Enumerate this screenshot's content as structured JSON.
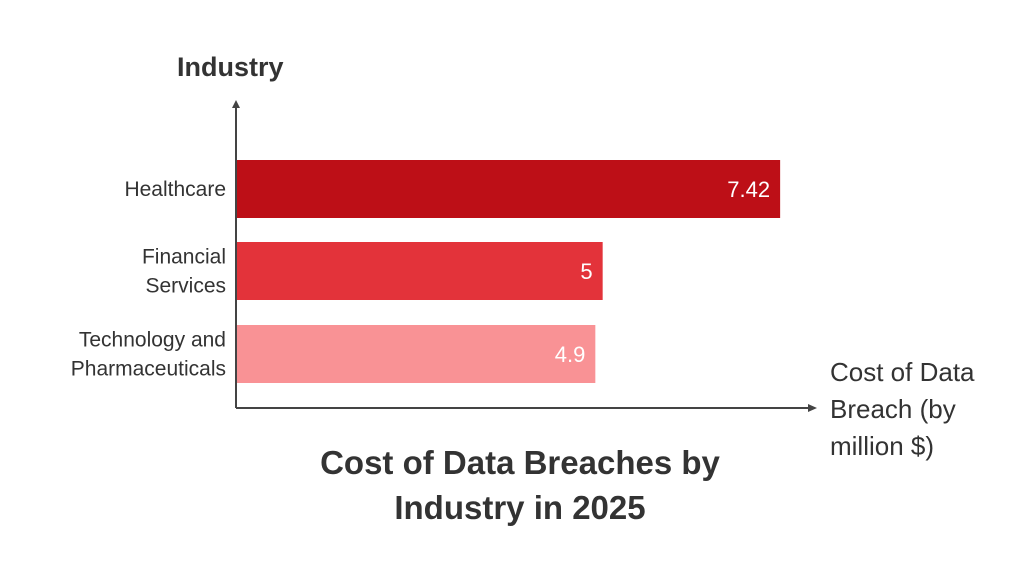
{
  "chart_data": {
    "type": "bar",
    "orientation": "horizontal",
    "title": "Cost of Data Breaches by Industry in 2025",
    "ylabel": "Industry",
    "xlabel": "Cost of Data Breach (by million $)",
    "categories": [
      "Healthcare",
      "Financial Services",
      "Technology and Pharmaceuticals"
    ],
    "category_lines": [
      [
        "Healthcare"
      ],
      [
        "Financial",
        "Services"
      ],
      [
        "Technology and",
        "Pharmaceuticals"
      ]
    ],
    "values": [
      7.42,
      5,
      4.9
    ],
    "value_labels": [
      "7.42",
      "5",
      "4.9"
    ],
    "colors": [
      "#bd0f17",
      "#e3333a",
      "#f99295"
    ],
    "xlim": [
      0,
      7.8
    ],
    "grid": false
  }
}
